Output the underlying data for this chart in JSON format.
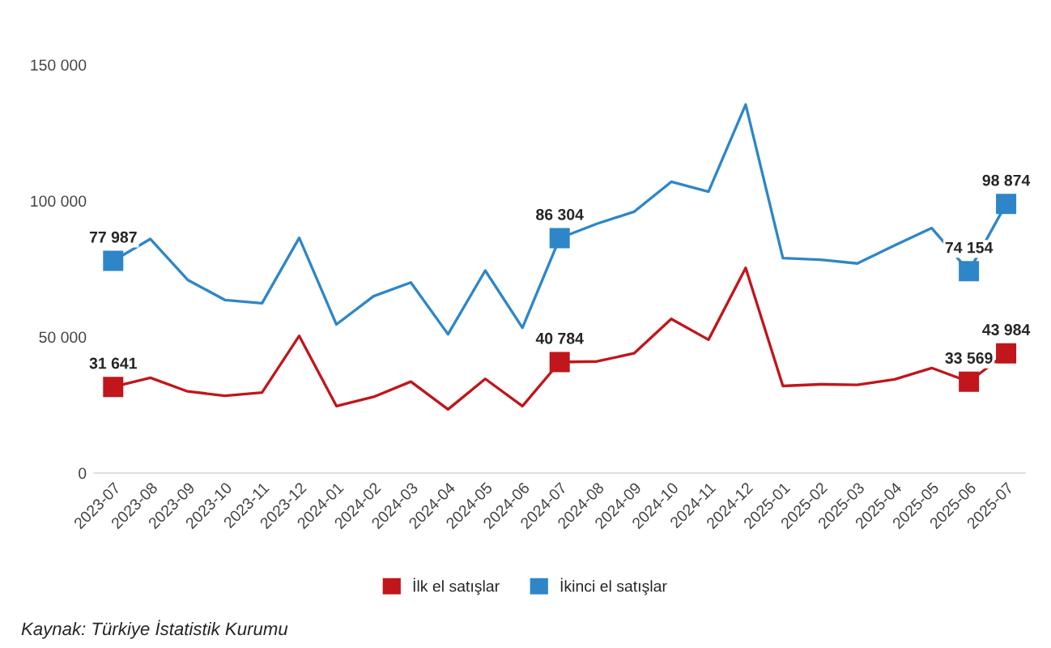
{
  "chart_data": {
    "type": "line",
    "categories": [
      "2023-07",
      "2023-08",
      "2023-09",
      "2023-10",
      "2023-11",
      "2023-12",
      "2024-01",
      "2024-02",
      "2024-03",
      "2024-04",
      "2024-05",
      "2024-06",
      "2024-07",
      "2024-08",
      "2024-09",
      "2024-10",
      "2024-11",
      "2024-12",
      "2025-01",
      "2025-02",
      "2025-03",
      "2025-04",
      "2025-05",
      "2025-06",
      "2025-07"
    ],
    "series": [
      {
        "name": "İlk el satışlar",
        "color": "#c0161c",
        "values": [
          31641,
          35000,
          30000,
          28400,
          29600,
          50400,
          24600,
          28000,
          33600,
          23400,
          34600,
          24600,
          40784,
          41000,
          44000,
          56600,
          49000,
          75400,
          32000,
          32600,
          32400,
          34400,
          38600,
          33569,
          43984
        ],
        "value_labels": [
          "31 641",
          null,
          null,
          null,
          null,
          null,
          null,
          null,
          null,
          null,
          null,
          null,
          "40 784",
          null,
          null,
          null,
          null,
          null,
          null,
          null,
          null,
          null,
          null,
          "33 569",
          "43 984"
        ]
      },
      {
        "name": "İkinci el satışlar",
        "color": "#2e86c8",
        "values": [
          77987,
          86000,
          71000,
          63600,
          62400,
          86400,
          54600,
          65000,
          70000,
          51000,
          74400,
          53400,
          86304,
          91600,
          96000,
          107000,
          103400,
          135400,
          79000,
          78400,
          77000,
          83600,
          90000,
          74154,
          98874
        ],
        "value_labels": [
          "77 987",
          null,
          null,
          null,
          null,
          null,
          null,
          null,
          null,
          null,
          null,
          null,
          "86 304",
          null,
          null,
          null,
          null,
          null,
          null,
          null,
          null,
          null,
          null,
          "74 154",
          "98 874"
        ]
      }
    ],
    "ylim": [
      0,
      150000
    ],
    "yticks": [
      {
        "value": 0,
        "label": "0"
      },
      {
        "value": 50000,
        "label": "50 000"
      },
      {
        "value": 100000,
        "label": "100 000"
      },
      {
        "value": 150000,
        "label": "150 000"
      }
    ],
    "legend": "bottom",
    "annotations": [
      "Kaynak: Türkiye İstatistik Kurumu"
    ]
  }
}
